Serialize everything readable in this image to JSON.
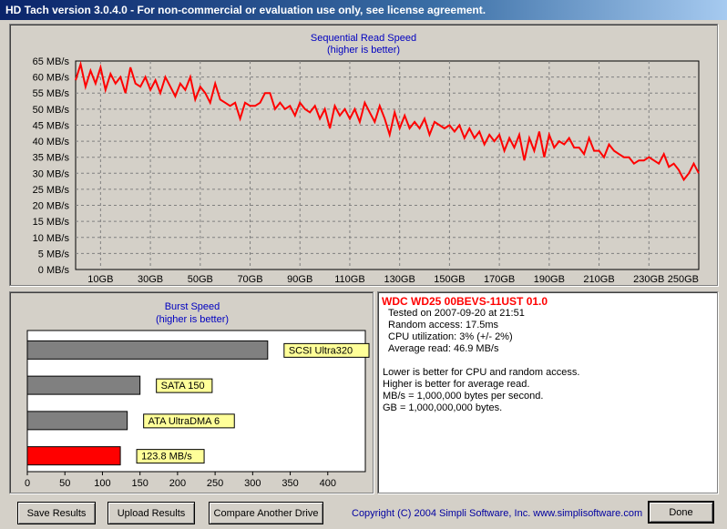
{
  "window": {
    "title": "HD Tach version 3.0.4.0  - For non-commercial or evaluation use only, see license agreement."
  },
  "colors": {
    "series": "#ff0000",
    "title_text": "#0000c0",
    "bar_gray": "#808080",
    "label_bg": "#ffff99"
  },
  "chart_data": [
    {
      "type": "line",
      "title": "Sequential Read Speed",
      "subtitle": "(higher is better)",
      "ylabel": "",
      "xlabel": "",
      "ylim": [
        0,
        65
      ],
      "xlim": [
        0,
        250
      ],
      "y_ticks": [
        0,
        5,
        10,
        15,
        20,
        25,
        30,
        35,
        40,
        45,
        50,
        55,
        60,
        65
      ],
      "y_tick_labels": [
        "0 MB/s",
        "5 MB/s",
        "10 MB/s",
        "15 MB/s",
        "20 MB/s",
        "25 MB/s",
        "30 MB/s",
        "35 MB/s",
        "40 MB/s",
        "45 MB/s",
        "50 MB/s",
        "55 MB/s",
        "60 MB/s",
        "65 MB/s"
      ],
      "x_ticks": [
        10,
        30,
        50,
        70,
        90,
        110,
        130,
        150,
        170,
        190,
        210,
        230,
        250
      ],
      "x_tick_labels": [
        "10GB",
        "30GB",
        "50GB",
        "70GB",
        "90GB",
        "110GB",
        "130GB",
        "150GB",
        "170GB",
        "190GB",
        "210GB",
        "230GB",
        "250GB"
      ],
      "grid": true,
      "series": [
        {
          "x": [
            0,
            2,
            4,
            6,
            8,
            10,
            12,
            14,
            16,
            18,
            20,
            22,
            24,
            26,
            28,
            30,
            32,
            34,
            36,
            38,
            40,
            42,
            44,
            46,
            48,
            50,
            52,
            54,
            56,
            58,
            60,
            62,
            64,
            66,
            68,
            70,
            72,
            74,
            76,
            78,
            80,
            82,
            84,
            86,
            88,
            90,
            92,
            94,
            96,
            98,
            100,
            102,
            104,
            106,
            108,
            110,
            112,
            114,
            116,
            118,
            120,
            122,
            124,
            126,
            128,
            130,
            132,
            134,
            136,
            138,
            140,
            142,
            144,
            146,
            148,
            150,
            152,
            154,
            156,
            158,
            160,
            162,
            164,
            166,
            168,
            170,
            172,
            174,
            176,
            178,
            180,
            182,
            184,
            186,
            188,
            190,
            192,
            194,
            196,
            198,
            200,
            202,
            204,
            206,
            208,
            210,
            212,
            214,
            216,
            218,
            220,
            222,
            224,
            226,
            228,
            230,
            232,
            234,
            236,
            238,
            240,
            242,
            244,
            246,
            248,
            250
          ],
          "values": [
            59,
            64,
            57,
            62,
            58,
            63,
            56,
            61,
            58,
            60,
            55,
            63,
            58,
            57,
            60,
            56,
            59,
            55,
            60,
            57,
            54,
            58,
            56,
            60,
            53,
            57,
            55,
            52,
            58,
            53,
            52,
            51,
            52,
            47,
            52,
            51,
            51,
            52,
            55,
            55,
            50,
            52,
            50,
            51,
            48,
            52,
            50,
            49,
            51,
            47,
            50,
            44,
            51,
            48,
            50,
            47,
            50,
            46,
            52,
            49,
            46,
            51,
            47,
            42,
            49,
            44,
            48,
            44,
            46,
            44,
            47,
            42,
            46,
            45,
            44,
            45,
            43,
            45,
            41,
            44,
            41,
            43,
            39,
            42,
            40,
            42,
            37,
            41,
            38,
            42,
            34,
            41,
            37,
            43,
            35,
            42,
            38,
            40,
            39,
            41,
            38,
            38,
            36,
            41,
            37,
            37,
            35,
            39,
            37,
            36,
            35,
            35,
            33,
            34,
            34,
            35,
            34,
            33,
            36,
            32,
            33,
            31,
            28,
            30,
            33,
            30
          ]
        }
      ]
    },
    {
      "type": "bar",
      "orientation": "horizontal",
      "title": "Burst Speed",
      "subtitle": "(higher is better)",
      "xlim": [
        0,
        450
      ],
      "x_ticks": [
        0,
        50,
        100,
        150,
        200,
        250,
        300,
        350,
        400
      ],
      "categories": [
        "SCSI Ultra320",
        "SATA 150",
        "ATA UltraDMA 6",
        "123.8 MB/s"
      ],
      "values": [
        320,
        150,
        133,
        123.8
      ],
      "bar_colors": [
        "#808080",
        "#808080",
        "#808080",
        "#ff0000"
      ]
    }
  ],
  "info": {
    "drive_name": "WDC WD25 00BEVS-11UST 01.0",
    "tested_on": "Tested on 2007-09-20 at 21:51",
    "random_access": "Random access: 17.5ms",
    "cpu_utilization": "CPU utilization: 3% (+/- 2%)",
    "average_read": "Average read: 46.9 MB/s",
    "notes": [
      "Lower is better for CPU and random access.",
      "Higher is better for average read.",
      "MB/s = 1,000,000 bytes per second.",
      "GB = 1,000,000,000 bytes."
    ]
  },
  "buttons": {
    "save": "Save Results",
    "upload": "Upload Results",
    "compare": "Compare Another Drive",
    "done": "Done"
  },
  "footer": {
    "copyright": "Copyright (C) 2004 Simpli Software, Inc. www.simplisoftware.com"
  }
}
